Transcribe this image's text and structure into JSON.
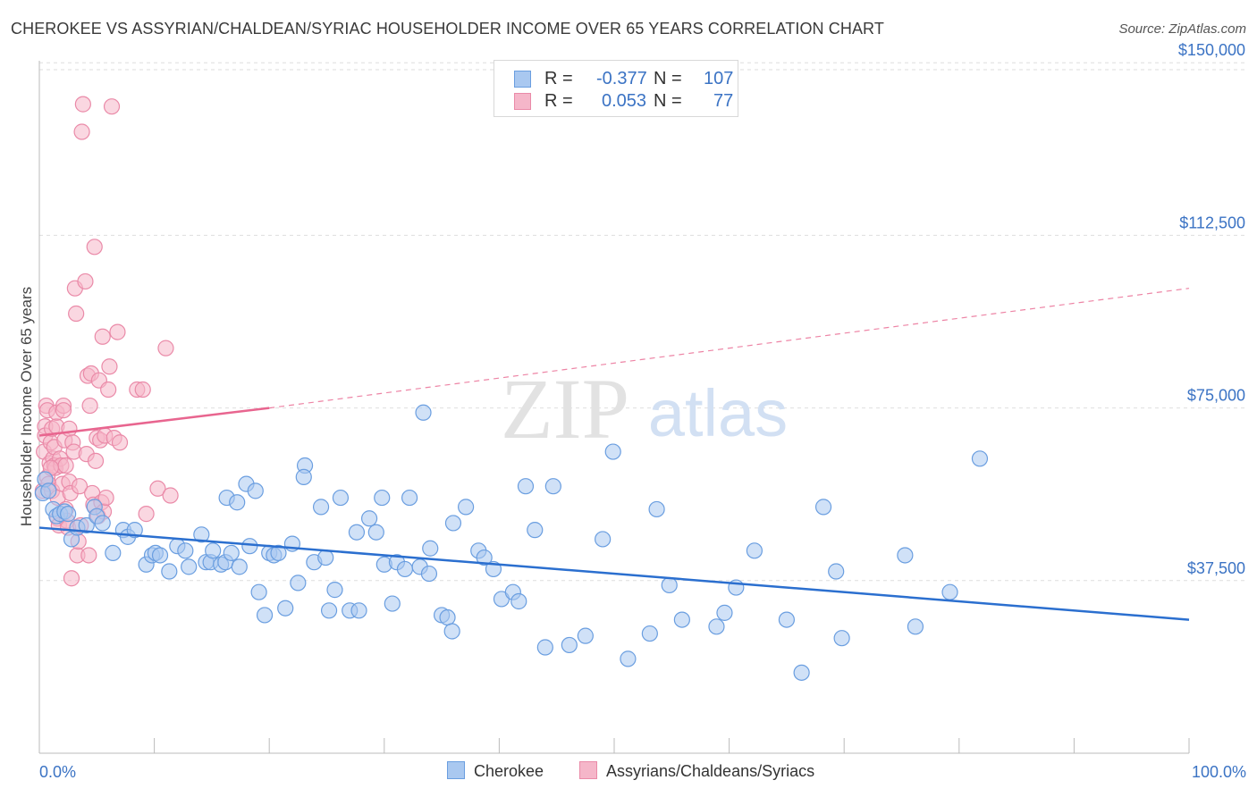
{
  "header": {
    "title": "CHEROKEE VS ASSYRIAN/CHALDEAN/SYRIAC HOUSEHOLDER INCOME OVER 65 YEARS CORRELATION CHART",
    "source": "Source: ZipAtlas.com"
  },
  "watermark": {
    "zip": "ZIP",
    "atlas": "atlas"
  },
  "legend": {
    "r_label": "R =",
    "n_label": "N =",
    "series1": {
      "r": "-0.377",
      "n": "107"
    },
    "series2": {
      "r": "0.053",
      "n": "77"
    }
  },
  "colors": {
    "blue_fill": "#a9c8f0",
    "blue_stroke": "#6a9ee0",
    "blue_line": "#2b6fcf",
    "pink_fill": "#f5b6c9",
    "pink_stroke": "#ea8aa8",
    "pink_line": "#e8658f",
    "axis_text": "#3b73c4",
    "grid": "#dedede"
  },
  "chart_data": {
    "type": "scatter",
    "title": "CHEROKEE VS ASSYRIAN/CHALDEAN/SYRIAC HOUSEHOLDER INCOME OVER 65 YEARS CORRELATION CHART",
    "xlabel": "",
    "ylabel": "Householder Income Over 65 years",
    "xlim": [
      0,
      100
    ],
    "ylim": [
      0,
      155000
    ],
    "x_tick_labels": [
      "0.0%",
      "100.0%"
    ],
    "y_ticks": [
      37500,
      75000,
      112500,
      150000
    ],
    "y_tick_labels": [
      "$37,500",
      "$75,000",
      "$112,500",
      "$150,000"
    ],
    "grid": true,
    "series": [
      {
        "name": "Cherokee",
        "color": "#6a9ee0",
        "trend": {
          "x": [
            0,
            100
          ],
          "y": [
            49000,
            29000
          ],
          "style": "solid"
        },
        "points": [
          [
            0.3,
            56500
          ],
          [
            0.5,
            59500
          ],
          [
            1.2,
            53000
          ],
          [
            1.5,
            51500
          ],
          [
            1.8,
            52000
          ],
          [
            2.2,
            52500
          ],
          [
            2.8,
            46500
          ],
          [
            3.3,
            49000
          ],
          [
            4.1,
            49500
          ],
          [
            4.8,
            53500
          ],
          [
            5.0,
            51500
          ],
          [
            5.5,
            50000
          ],
          [
            6.4,
            43500
          ],
          [
            7.3,
            48500
          ],
          [
            7.7,
            47000
          ],
          [
            8.3,
            48500
          ],
          [
            9.3,
            41000
          ],
          [
            9.8,
            43000
          ],
          [
            10.1,
            43500
          ],
          [
            10.5,
            43000
          ],
          [
            11.3,
            39500
          ],
          [
            12.0,
            45000
          ],
          [
            12.7,
            44000
          ],
          [
            13.0,
            40500
          ],
          [
            14.1,
            47500
          ],
          [
            14.5,
            41500
          ],
          [
            14.9,
            41500
          ],
          [
            15.1,
            44000
          ],
          [
            15.8,
            41000
          ],
          [
            16.2,
            41500
          ],
          [
            16.7,
            43500
          ],
          [
            17.4,
            40500
          ],
          [
            16.3,
            55500
          ],
          [
            17.2,
            54500
          ],
          [
            18.0,
            58500
          ],
          [
            18.3,
            45000
          ],
          [
            18.8,
            57000
          ],
          [
            19.1,
            35000
          ],
          [
            19.6,
            30000
          ],
          [
            20.0,
            43500
          ],
          [
            20.4,
            43000
          ],
          [
            20.8,
            43500
          ],
          [
            21.4,
            31500
          ],
          [
            22.0,
            45500
          ],
          [
            22.5,
            37000
          ],
          [
            23.1,
            62500
          ],
          [
            23.0,
            60000
          ],
          [
            23.9,
            41500
          ],
          [
            24.5,
            53500
          ],
          [
            24.9,
            42500
          ],
          [
            25.2,
            31000
          ],
          [
            25.7,
            35500
          ],
          [
            26.2,
            55500
          ],
          [
            27.0,
            31000
          ],
          [
            27.6,
            48000
          ],
          [
            27.8,
            31000
          ],
          [
            28.7,
            51000
          ],
          [
            29.3,
            48000
          ],
          [
            29.8,
            55500
          ],
          [
            30.0,
            41000
          ],
          [
            30.7,
            32500
          ],
          [
            31.1,
            41500
          ],
          [
            31.8,
            40000
          ],
          [
            32.2,
            55500
          ],
          [
            33.1,
            40500
          ],
          [
            33.4,
            74000
          ],
          [
            33.9,
            39000
          ],
          [
            34.0,
            44500
          ],
          [
            35.0,
            30000
          ],
          [
            35.5,
            29500
          ],
          [
            35.9,
            26500
          ],
          [
            36.0,
            50000
          ],
          [
            37.1,
            53500
          ],
          [
            38.2,
            44000
          ],
          [
            38.7,
            42500
          ],
          [
            39.5,
            40000
          ],
          [
            40.2,
            33500
          ],
          [
            41.2,
            35000
          ],
          [
            41.7,
            33000
          ],
          [
            42.3,
            58000
          ],
          [
            43.1,
            48500
          ],
          [
            44.0,
            23000
          ],
          [
            44.7,
            58000
          ],
          [
            46.1,
            23500
          ],
          [
            47.5,
            25500
          ],
          [
            49.0,
            46500
          ],
          [
            49.9,
            65500
          ],
          [
            51.2,
            20500
          ],
          [
            53.1,
            26000
          ],
          [
            53.7,
            53000
          ],
          [
            54.8,
            36500
          ],
          [
            55.9,
            29000
          ],
          [
            58.9,
            27500
          ],
          [
            59.6,
            30500
          ],
          [
            60.6,
            36000
          ],
          [
            62.2,
            44000
          ],
          [
            65.0,
            29000
          ],
          [
            66.3,
            17500
          ],
          [
            68.2,
            53500
          ],
          [
            69.3,
            39500
          ],
          [
            69.8,
            25000
          ],
          [
            75.3,
            43000
          ],
          [
            76.2,
            27500
          ],
          [
            79.2,
            35000
          ],
          [
            81.8,
            64000
          ],
          [
            0.8,
            57000
          ],
          [
            2.5,
            52000
          ]
        ]
      },
      {
        "name": "Assyrians/Chaldeans/Syriacs",
        "color": "#ea8aa8",
        "trend": {
          "x": [
            0,
            20,
            100
          ],
          "y": [
            69000,
            75000,
            101000
          ],
          "style": "solid-then-dashed"
        },
        "points": [
          [
            0.3,
            57000
          ],
          [
            0.4,
            65500
          ],
          [
            0.5,
            71000
          ],
          [
            0.5,
            69000
          ],
          [
            0.6,
            75500
          ],
          [
            0.7,
            74500
          ],
          [
            0.7,
            60000
          ],
          [
            0.8,
            58500
          ],
          [
            0.9,
            63000
          ],
          [
            1.0,
            67500
          ],
          [
            1.1,
            70500
          ],
          [
            1.1,
            57000
          ],
          [
            1.2,
            64000
          ],
          [
            1.3,
            66500
          ],
          [
            1.3,
            62500
          ],
          [
            1.4,
            62000
          ],
          [
            1.5,
            71000
          ],
          [
            1.5,
            74000
          ],
          [
            1.6,
            55500
          ],
          [
            1.6,
            51000
          ],
          [
            1.7,
            49500
          ],
          [
            1.8,
            64000
          ],
          [
            1.9,
            62500
          ],
          [
            2.0,
            58500
          ],
          [
            2.1,
            75500
          ],
          [
            2.1,
            74500
          ],
          [
            2.2,
            68000
          ],
          [
            2.3,
            62500
          ],
          [
            2.3,
            53000
          ],
          [
            2.4,
            50500
          ],
          [
            2.5,
            49000
          ],
          [
            2.6,
            70500
          ],
          [
            2.6,
            59000
          ],
          [
            2.7,
            56500
          ],
          [
            2.8,
            38000
          ],
          [
            2.9,
            67500
          ],
          [
            3.0,
            65500
          ],
          [
            3.1,
            101000
          ],
          [
            3.2,
            95500
          ],
          [
            3.3,
            43000
          ],
          [
            3.4,
            46000
          ],
          [
            3.5,
            58000
          ],
          [
            3.6,
            49500
          ],
          [
            3.7,
            135000
          ],
          [
            3.8,
            141000
          ],
          [
            4.0,
            102500
          ],
          [
            4.1,
            65000
          ],
          [
            4.2,
            82000
          ],
          [
            4.3,
            43000
          ],
          [
            4.4,
            75500
          ],
          [
            4.5,
            82500
          ],
          [
            4.6,
            56500
          ],
          [
            4.7,
            54000
          ],
          [
            4.8,
            110000
          ],
          [
            4.9,
            63500
          ],
          [
            5.0,
            68500
          ],
          [
            5.1,
            51500
          ],
          [
            5.2,
            81000
          ],
          [
            5.3,
            68000
          ],
          [
            5.4,
            54500
          ],
          [
            5.5,
            90500
          ],
          [
            5.6,
            52500
          ],
          [
            5.7,
            69000
          ],
          [
            5.8,
            55500
          ],
          [
            6.0,
            79000
          ],
          [
            6.1,
            84000
          ],
          [
            6.3,
            140500
          ],
          [
            6.5,
            68500
          ],
          [
            6.8,
            91500
          ],
          [
            7.0,
            67500
          ],
          [
            8.5,
            79000
          ],
          [
            9.0,
            79000
          ],
          [
            9.3,
            52000
          ],
          [
            10.3,
            57500
          ],
          [
            11.0,
            88000
          ],
          [
            11.4,
            56000
          ],
          [
            1.0,
            62000
          ]
        ]
      }
    ]
  },
  "bottom_legend": {
    "series1_label": "Cherokee",
    "series2_label": "Assyrians/Chaldeans/Syriacs"
  },
  "axis": {
    "x_min_label": "0.0%",
    "x_max_label": "100.0%",
    "y_title": "Householder Income Over 65 years"
  }
}
